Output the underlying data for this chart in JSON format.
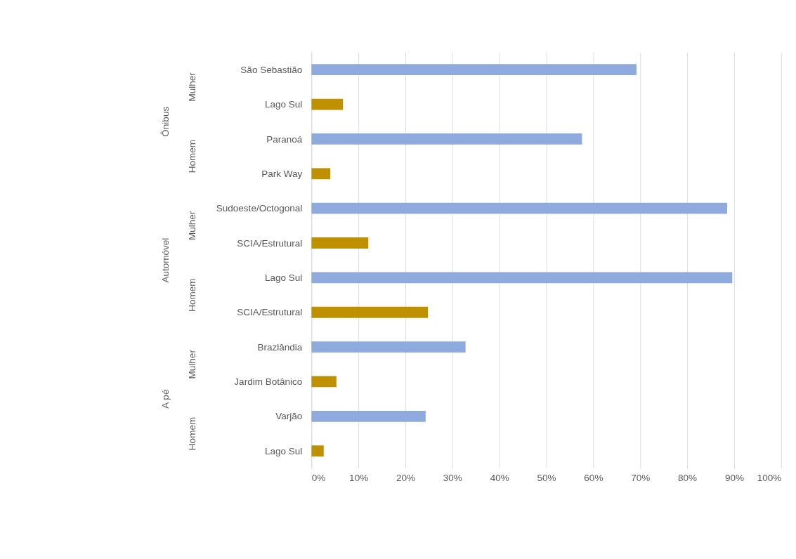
{
  "chart_data": {
    "type": "bar",
    "orientation": "horizontal",
    "categories": [
      "São Sebastião",
      "Lago Sul",
      "Paranoá",
      "Park Way",
      "Sudoeste/Octogonal",
      "SCIA/Estrutural",
      "Lago Sul",
      "SCIA/Estrutural",
      "Brazlândia",
      "Jardim Botânico",
      "Varjão",
      "Lago Sul"
    ],
    "values": [
      69.2,
      6.7,
      57.6,
      4.0,
      88.5,
      12.1,
      89.6,
      24.8,
      32.8,
      5.3,
      24.3,
      2.6
    ],
    "colors": [
      "#8faadc",
      "#bf9000",
      "#8faadc",
      "#bf9000",
      "#8faadc",
      "#bf9000",
      "#8faadc",
      "#bf9000",
      "#8faadc",
      "#bf9000",
      "#8faadc",
      "#bf9000"
    ],
    "xlim": [
      0,
      100
    ],
    "xticks": [
      {
        "value": 0,
        "label": "0%"
      },
      {
        "value": 10,
        "label": "10%"
      },
      {
        "value": 20,
        "label": "20%"
      },
      {
        "value": 30,
        "label": "30%"
      },
      {
        "value": 40,
        "label": "40%"
      },
      {
        "value": 50,
        "label": "50%"
      },
      {
        "value": 60,
        "label": "60%"
      },
      {
        "value": 70,
        "label": "70%"
      },
      {
        "value": 80,
        "label": "80%"
      },
      {
        "value": 90,
        "label": "90%"
      },
      {
        "value": 100,
        "label": "100%"
      }
    ],
    "annotations": [
      "Mulher",
      "Homem",
      "Mulher",
      "Homem",
      "Mulher",
      "Homem",
      "Ônibus",
      "Automóvel",
      "A pé"
    ],
    "grid": "x"
  }
}
